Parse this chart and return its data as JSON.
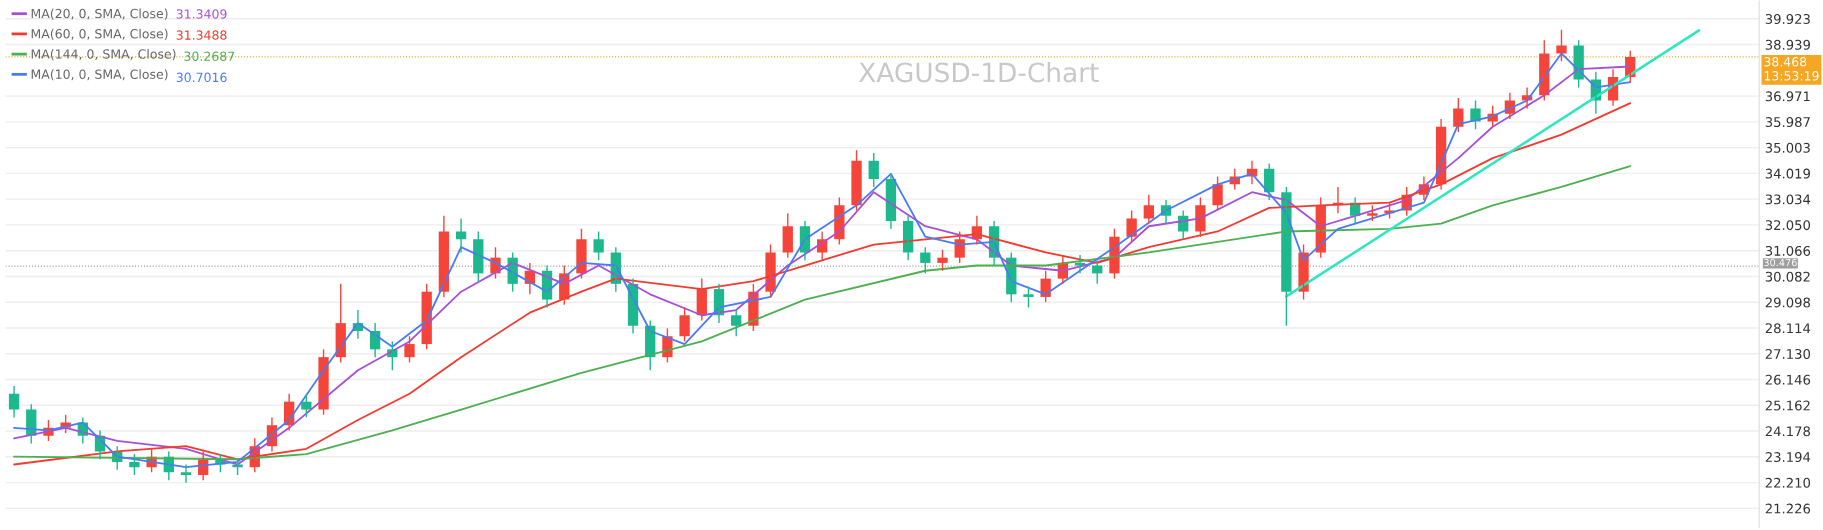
{
  "chart_data": {
    "type": "candlestick",
    "title": "XAGUSD-1D-Chart",
    "categories": [
      null,
      null,
      null,
      null,
      null,
      null,
      null,
      null,
      null,
      null,
      null,
      null,
      null,
      null,
      null,
      null,
      null,
      null,
      null,
      null,
      null,
      null,
      null,
      null,
      null,
      null,
      null,
      null,
      null,
      null,
      null,
      null,
      null,
      null,
      null,
      null,
      null,
      null,
      null,
      null,
      null,
      null,
      null,
      null,
      null,
      null,
      null,
      null,
      null,
      null,
      null,
      null,
      null,
      null,
      null,
      null,
      null,
      null,
      null,
      null,
      null,
      null,
      null,
      null,
      null,
      null,
      null,
      null,
      null,
      null,
      null,
      null,
      null,
      null,
      null,
      null,
      null,
      null,
      null,
      null,
      null,
      null,
      null,
      null,
      null,
      null,
      null,
      null,
      null,
      null,
      null,
      null,
      null,
      null,
      null,
      null,
      null,
      null,
      null,
      null,
      null,
      null
    ],
    "ohlc": [
      [
        25.6,
        25.9,
        24.7,
        25.0
      ],
      [
        25.0,
        25.2,
        23.7,
        24.0
      ],
      [
        24.0,
        24.6,
        23.8,
        24.3
      ],
      [
        24.3,
        24.8,
        24.1,
        24.5
      ],
      [
        24.5,
        24.7,
        23.7,
        24.0
      ],
      [
        24.0,
        24.2,
        23.1,
        23.4
      ],
      [
        23.4,
        23.6,
        22.7,
        23.0
      ],
      [
        23.0,
        23.3,
        22.5,
        22.8
      ],
      [
        22.8,
        23.5,
        22.6,
        23.2
      ],
      [
        23.2,
        23.4,
        22.3,
        22.6
      ],
      [
        22.6,
        22.9,
        22.2,
        22.5
      ],
      [
        22.5,
        23.4,
        22.3,
        23.1
      ],
      [
        23.1,
        23.3,
        22.6,
        22.9
      ],
      [
        22.9,
        23.1,
        22.5,
        22.8
      ],
      [
        22.8,
        23.9,
        22.6,
        23.6
      ],
      [
        23.6,
        24.7,
        23.4,
        24.4
      ],
      [
        24.4,
        25.6,
        24.2,
        25.3
      ],
      [
        25.3,
        25.6,
        24.7,
        25.0
      ],
      [
        25.0,
        27.3,
        24.8,
        27.0
      ],
      [
        27.0,
        29.8,
        26.8,
        28.3
      ],
      [
        28.3,
        28.8,
        27.7,
        28.0
      ],
      [
        28.0,
        28.3,
        27.0,
        27.3
      ],
      [
        27.3,
        27.6,
        26.5,
        27.0
      ],
      [
        27.0,
        27.8,
        26.8,
        27.5
      ],
      [
        27.5,
        29.8,
        27.3,
        29.5
      ],
      [
        29.5,
        32.4,
        29.3,
        31.8
      ],
      [
        31.8,
        32.3,
        31.0,
        31.5
      ],
      [
        31.5,
        31.8,
        29.9,
        30.2
      ],
      [
        30.2,
        31.2,
        30.0,
        30.8
      ],
      [
        30.8,
        31.0,
        29.5,
        29.8
      ],
      [
        29.8,
        30.6,
        29.4,
        30.3
      ],
      [
        30.3,
        30.5,
        28.9,
        29.2
      ],
      [
        29.2,
        30.5,
        29.0,
        30.2
      ],
      [
        30.2,
        31.9,
        30.0,
        31.5
      ],
      [
        31.5,
        31.8,
        30.7,
        31.0
      ],
      [
        31.0,
        31.2,
        29.5,
        29.8
      ],
      [
        29.8,
        30.0,
        27.9,
        28.2
      ],
      [
        28.2,
        28.4,
        26.5,
        27.0
      ],
      [
        27.0,
        28.1,
        26.8,
        27.8
      ],
      [
        27.8,
        28.9,
        27.6,
        28.6
      ],
      [
        28.6,
        30.0,
        28.4,
        29.6
      ],
      [
        29.6,
        29.8,
        28.3,
        28.6
      ],
      [
        28.6,
        28.8,
        27.8,
        28.2
      ],
      [
        28.2,
        29.8,
        28.0,
        29.5
      ],
      [
        29.5,
        31.3,
        29.3,
        31.0
      ],
      [
        31.0,
        32.5,
        30.8,
        32.0
      ],
      [
        32.0,
        32.2,
        30.7,
        31.0
      ],
      [
        31.0,
        31.8,
        30.7,
        31.5
      ],
      [
        31.5,
        33.1,
        31.3,
        32.8
      ],
      [
        32.8,
        34.9,
        32.6,
        34.5
      ],
      [
        34.5,
        34.8,
        33.5,
        33.8
      ],
      [
        33.8,
        34.0,
        31.9,
        32.2
      ],
      [
        32.2,
        32.4,
        30.7,
        31.0
      ],
      [
        31.0,
        31.2,
        30.2,
        30.6
      ],
      [
        30.6,
        31.1,
        30.3,
        30.8
      ],
      [
        30.8,
        31.8,
        30.6,
        31.5
      ],
      [
        31.5,
        32.4,
        31.3,
        32.0
      ],
      [
        32.0,
        32.2,
        30.5,
        30.8
      ],
      [
        30.8,
        31.0,
        29.1,
        29.4
      ],
      [
        29.4,
        29.7,
        28.9,
        29.3
      ],
      [
        29.3,
        30.3,
        29.1,
        30.0
      ],
      [
        30.0,
        30.9,
        29.8,
        30.6
      ],
      [
        30.6,
        30.9,
        30.2,
        30.5
      ],
      [
        30.5,
        30.7,
        29.8,
        30.2
      ],
      [
        30.2,
        31.9,
        30.0,
        31.6
      ],
      [
        31.6,
        32.6,
        31.4,
        32.3
      ],
      [
        32.3,
        33.2,
        32.1,
        32.8
      ],
      [
        32.8,
        33.0,
        32.1,
        32.4
      ],
      [
        32.4,
        32.6,
        31.5,
        31.8
      ],
      [
        31.8,
        33.1,
        31.6,
        32.8
      ],
      [
        32.8,
        33.9,
        32.6,
        33.6
      ],
      [
        33.6,
        34.2,
        33.4,
        33.9
      ],
      [
        33.9,
        34.5,
        33.6,
        34.2
      ],
      [
        34.2,
        34.4,
        33.0,
        33.3
      ],
      [
        33.3,
        33.5,
        28.2,
        29.5
      ],
      [
        29.5,
        31.3,
        29.2,
        31.0
      ],
      [
        31.0,
        33.1,
        30.8,
        32.8
      ],
      [
        32.8,
        33.5,
        32.5,
        32.9
      ],
      [
        32.9,
        33.1,
        32.1,
        32.4
      ],
      [
        32.4,
        32.8,
        32.2,
        32.5
      ],
      [
        32.5,
        32.9,
        32.3,
        32.6
      ],
      [
        32.6,
        33.5,
        32.4,
        33.2
      ],
      [
        33.2,
        33.9,
        33.0,
        33.6
      ],
      [
        33.6,
        36.1,
        33.4,
        35.8
      ],
      [
        35.8,
        36.9,
        35.6,
        36.5
      ],
      [
        36.5,
        36.8,
        35.7,
        36.0
      ],
      [
        36.0,
        36.6,
        35.8,
        36.3
      ],
      [
        36.3,
        37.1,
        36.1,
        36.8
      ],
      [
        36.8,
        37.3,
        36.5,
        37.0
      ],
      [
        37.0,
        39.1,
        36.8,
        38.6
      ],
      [
        38.6,
        39.5,
        38.3,
        38.9
      ],
      [
        38.9,
        39.1,
        37.3,
        37.6
      ],
      [
        37.6,
        37.9,
        36.3,
        36.8
      ],
      [
        36.8,
        38.0,
        36.6,
        37.7
      ],
      [
        37.7,
        38.7,
        37.5,
        38.468
      ],
      null,
      null,
      null,
      null,
      null,
      null,
      null
    ],
    "colors": [
      "#1db88e",
      "#1db88e",
      "#f5453a",
      "#f5453a",
      "#1db88e",
      "#1db88e",
      "#1db88e",
      "#1db88e",
      "#f5453a",
      "#1db88e",
      "#1db88e",
      "#f5453a",
      "#1db88e",
      "#1db88e",
      "#f5453a",
      "#f5453a",
      "#f5453a",
      "#1db88e",
      "#f5453a",
      "#f5453a",
      "#1db88e",
      "#1db88e",
      "#1db88e",
      "#f5453a",
      "#f5453a",
      "#f5453a",
      "#1db88e",
      "#1db88e",
      "#f5453a",
      "#1db88e",
      "#f5453a",
      "#1db88e",
      "#f5453a",
      "#f5453a",
      "#1db88e",
      "#1db88e",
      "#1db88e",
      "#1db88e",
      "#f5453a",
      "#f5453a",
      "#f5453a",
      "#1db88e",
      "#1db88e",
      "#f5453a",
      "#f5453a",
      "#f5453a",
      "#1db88e",
      "#f5453a",
      "#f5453a",
      "#f5453a",
      "#1db88e",
      "#1db88e",
      "#1db88e",
      "#1db88e",
      "#f5453a",
      "#f5453a",
      "#f5453a",
      "#1db88e",
      "#1db88e",
      "#1db88e",
      "#f5453a",
      "#f5453a",
      "#1db88e",
      "#1db88e",
      "#f5453a",
      "#f5453a",
      "#f5453a",
      "#1db88e",
      "#1db88e",
      "#f5453a",
      "#f5453a",
      "#f5453a",
      "#f5453a",
      "#1db88e",
      "#1db88e",
      "#f5453a",
      "#f5453a",
      "#f5453a",
      "#1db88e",
      "#f5453a",
      "#f5453a",
      "#f5453a",
      "#f5453a",
      "#f5453a",
      "#f5453a",
      "#1db88e",
      "#f5453a",
      "#f5453a",
      "#f5453a",
      "#f5453a",
      "#f5453a",
      "#1db88e",
      "#1db88e",
      "#f5453a",
      "#f5453a",
      null,
      null,
      null,
      null,
      null,
      null,
      null
    ],
    "series": [
      {
        "name": "MA(20, 0, SMA, Close)",
        "type": "line",
        "color": "#a650d8",
        "values": [
          23.9,
          null,
          null,
          24.3,
          null,
          null,
          23.8,
          null,
          null,
          null,
          23.5,
          null,
          null,
          22.9,
          null,
          null,
          24.3,
          null,
          null,
          null,
          26.5,
          null,
          null,
          27.6,
          null,
          null,
          29.5,
          null,
          null,
          30.6,
          null,
          null,
          29.8,
          null,
          30.5,
          null,
          null,
          29.4,
          null,
          null,
          28.6,
          null,
          28.8,
          null,
          null,
          30.5,
          null,
          null,
          31.8,
          null,
          33.3,
          null,
          null,
          32.0,
          null,
          null,
          31.5,
          null,
          30.5,
          null,
          null,
          30.3,
          null,
          null,
          30.8,
          null,
          32.0,
          null,
          null,
          32.3,
          null,
          null,
          33.3,
          null,
          33.0,
          null,
          32.0,
          null,
          32.4,
          null,
          null,
          33.0,
          null,
          null,
          34.6,
          null,
          35.8,
          null,
          null,
          37.0,
          null,
          38.0,
          null,
          null,
          38.1,
          null,
          null,
          null,
          null,
          null,
          null,
          null
        ]
      },
      {
        "name": "MA(60, 0, SMA, Close)",
        "type": "line",
        "color": "#f23b30",
        "values": [
          22.9,
          null,
          null,
          null,
          null,
          null,
          23.4,
          null,
          null,
          null,
          23.6,
          null,
          null,
          23.1,
          null,
          null,
          null,
          23.5,
          null,
          null,
          24.6,
          null,
          null,
          25.6,
          null,
          null,
          27.0,
          null,
          null,
          null,
          28.7,
          null,
          null,
          29.5,
          null,
          30.0,
          null,
          null,
          null,
          null,
          29.6,
          null,
          null,
          29.9,
          null,
          null,
          30.5,
          null,
          null,
          null,
          31.3,
          null,
          null,
          31.5,
          null,
          null,
          31.7,
          null,
          null,
          null,
          31.0,
          null,
          null,
          30.6,
          null,
          null,
          31.2,
          null,
          null,
          null,
          31.8,
          null,
          null,
          32.7,
          null,
          null,
          32.8,
          null,
          null,
          null,
          32.9,
          null,
          null,
          33.6,
          null,
          null,
          34.6,
          null,
          null,
          null,
          35.5,
          null,
          null,
          null,
          36.7,
          null,
          null,
          null,
          null,
          null,
          null,
          null
        ]
      },
      {
        "name": "MA(144, 0, SMA, Close)",
        "type": "line",
        "color": "#4caf50",
        "values": [
          23.2,
          null,
          null,
          null,
          null,
          null,
          null,
          null,
          null,
          null,
          null,
          null,
          null,
          23.1,
          null,
          null,
          null,
          23.3,
          null,
          null,
          null,
          null,
          24.2,
          null,
          null,
          null,
          25.0,
          null,
          null,
          null,
          null,
          null,
          null,
          26.4,
          null,
          null,
          null,
          null,
          null,
          null,
          27.6,
          null,
          null,
          null,
          null,
          null,
          29.2,
          null,
          null,
          null,
          null,
          null,
          null,
          30.3,
          null,
          null,
          30.5,
          null,
          null,
          null,
          30.5,
          null,
          null,
          null,
          null,
          null,
          31.0,
          null,
          null,
          null,
          null,
          null,
          null,
          null,
          31.8,
          null,
          null,
          null,
          null,
          null,
          31.9,
          null,
          null,
          32.1,
          null,
          null,
          32.8,
          null,
          null,
          null,
          33.5,
          null,
          null,
          null,
          34.3,
          null,
          null,
          null,
          null,
          null,
          null,
          null
        ]
      },
      {
        "name": "MA(10, 0, SMA, Close)",
        "type": "line",
        "color": "#4a7bf7",
        "values": [
          24.3,
          null,
          24.2,
          null,
          24.5,
          null,
          23.2,
          null,
          null,
          null,
          22.8,
          null,
          null,
          23.0,
          null,
          null,
          24.6,
          null,
          26.5,
          null,
          28.3,
          null,
          27.4,
          null,
          28.4,
          null,
          31.2,
          null,
          30.6,
          null,
          null,
          29.5,
          null,
          30.6,
          null,
          30.5,
          null,
          28.0,
          null,
          27.5,
          null,
          28.9,
          null,
          null,
          29.3,
          null,
          31.5,
          null,
          null,
          32.8,
          null,
          34.0,
          null,
          31.6,
          null,
          31.3,
          null,
          31.4,
          29.9,
          null,
          29.4,
          null,
          30.3,
          null,
          31.2,
          null,
          null,
          32.6,
          null,
          null,
          33.6,
          null,
          34.0,
          null,
          32.5,
          30.7,
          null,
          31.9,
          null,
          null,
          32.5,
          null,
          32.9,
          null,
          35.9,
          null,
          36.2,
          null,
          36.8,
          null,
          38.6,
          null,
          37.3,
          null,
          37.5,
          null,
          null,
          null,
          null,
          null,
          null,
          null
        ]
      },
      {
        "type": "line",
        "color": "#2ee6c0",
        "values": [
          null,
          null,
          null,
          null,
          null,
          null,
          null,
          null,
          null,
          null,
          null,
          null,
          null,
          null,
          null,
          null,
          null,
          null,
          null,
          null,
          null,
          null,
          null,
          null,
          null,
          null,
          null,
          null,
          null,
          null,
          null,
          null,
          null,
          null,
          null,
          null,
          null,
          null,
          null,
          null,
          null,
          null,
          null,
          null,
          null,
          null,
          null,
          null,
          null,
          null,
          null,
          null,
          null,
          null,
          null,
          null,
          null,
          null,
          null,
          null,
          null,
          null,
          null,
          null,
          null,
          null,
          null,
          null,
          null,
          null,
          null,
          null,
          null,
          null,
          29.32,
          null,
          null,
          null,
          null,
          null,
          null,
          null,
          null,
          null,
          null,
          null,
          null,
          null,
          null,
          null,
          null,
          null,
          null,
          null,
          null,
          null,
          null,
          null,
          39.48,
          null,
          null,
          null
        ]
      }
    ],
    "annotations": [
      "31.3409",
      "31.3488",
      "30.2687",
      "30.7016",
      "13:53:19"
    ],
    "ref_lines": [
      {
        "axis": "y",
        "value": 38.468,
        "label": "38.468",
        "color": "#f5a623",
        "line_style": "dotted"
      },
      {
        "axis": "y",
        "value": 30.476,
        "label": "30.476",
        "color": "#9e9e9e",
        "line_style": "dotted"
      }
    ],
    "ylim": [
      20.5,
      40.6
    ],
    "yticks": [
      {
        "value": 21.226,
        "label": "21.226"
      },
      {
        "value": 22.21,
        "label": "22.210"
      },
      {
        "value": 23.194,
        "label": "23.194"
      },
      {
        "value": 24.178,
        "label": "24.178"
      },
      {
        "value": 25.162,
        "label": "25.162"
      },
      {
        "value": 26.146,
        "label": "26.146"
      },
      {
        "value": 27.13,
        "label": "27.130"
      },
      {
        "value": 28.114,
        "label": "28.114"
      },
      {
        "value": 29.098,
        "label": "29.098"
      },
      {
        "value": 30.082,
        "label": "30.082"
      },
      {
        "value": 31.066,
        "label": "31.066"
      },
      {
        "value": 32.05,
        "label": "32.050"
      },
      {
        "value": 33.034,
        "label": "33.034"
      },
      {
        "value": 34.019,
        "label": "34.019"
      },
      {
        "value": 35.003,
        "label": "35.003"
      },
      {
        "value": 35.987,
        "label": "35.987"
      },
      {
        "value": 36.971,
        "label": "36.971"
      },
      {
        "value": 38.939,
        "label": "38.939"
      },
      {
        "value": 39.923,
        "label": "39.923"
      }
    ],
    "tick_labels": "y",
    "grid": "y",
    "legend": "top left"
  }
}
